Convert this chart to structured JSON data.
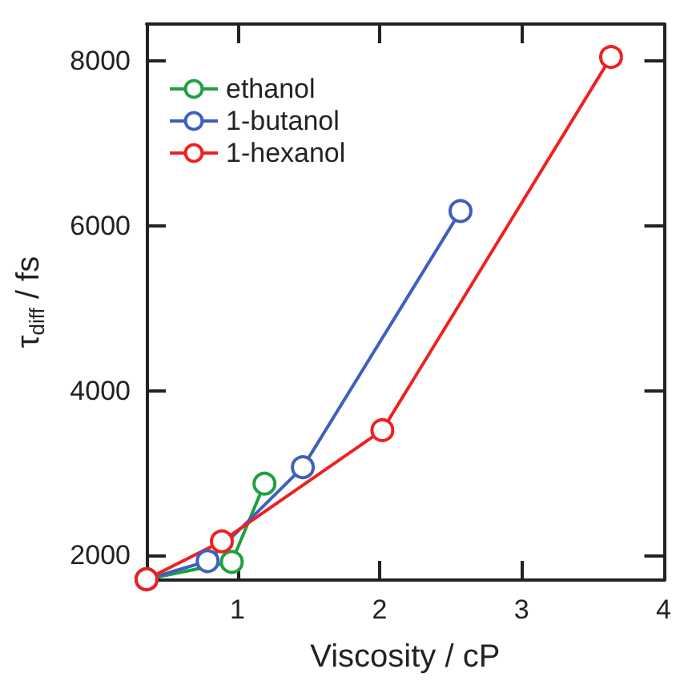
{
  "chart_data": {
    "type": "line",
    "xlabel": "Viscosity / cP",
    "ylabel": "τ$_{diff}$ / fs",
    "xlim": [
      0.36,
      4
    ],
    "xticks": [
      1,
      2,
      3,
      4
    ],
    "ylim": [
      1700,
      8450
    ],
    "yticks": [
      2000,
      4000,
      6000,
      8000
    ],
    "grid": false,
    "legend": "top left",
    "marker": "circle",
    "line_style": "solid",
    "series": [
      {
        "name": "ethanol",
        "color": "#1fa040",
        "x": [
          0.36,
          0.96,
          1.19
        ],
        "values": [
          1710,
          1920,
          2870
        ]
      },
      {
        "name": "1-butanol",
        "color": "#3f5fbf",
        "x": [
          0.36,
          0.79,
          1.46,
          2.57
        ],
        "values": [
          1710,
          1930,
          3070,
          6180
        ]
      },
      {
        "name": "1-hexanol",
        "color": "#f02020",
        "x": [
          0.36,
          0.89,
          2.02,
          3.63
        ],
        "values": [
          1710,
          2170,
          3520,
          8050
        ]
      }
    ]
  }
}
